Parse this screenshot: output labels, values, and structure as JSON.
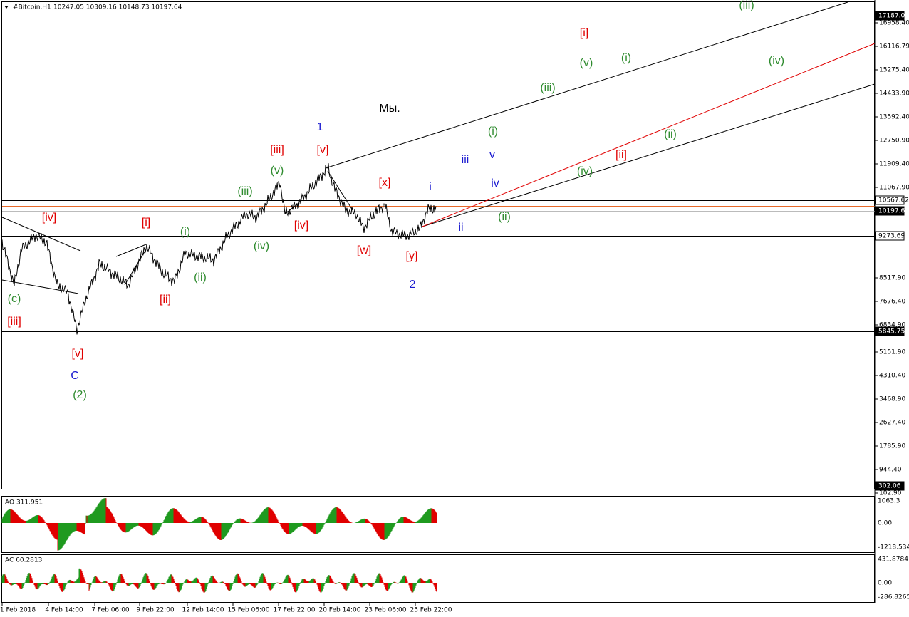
{
  "header": {
    "symbol": "#Bitcoin,H1",
    "quote": "10247.05 10309.16 10148.73 10197.64"
  },
  "price_axis": [
    "16958.40",
    "16116.79",
    "15275.40",
    "14433.90",
    "13592.40",
    "12750.90",
    "11909.40",
    "11067.90",
    "8517.90",
    "7676.40",
    "6834.90",
    "5151.90",
    "4310.40",
    "3468.90",
    "2627.40",
    "1785.90",
    "944.40",
    "102.90"
  ],
  "price_markers": [
    "17187.03",
    "10567.62",
    "10197.64",
    "9273.69",
    "5845.75",
    "302.06"
  ],
  "wave_labels": [
    {
      "text": "(iii)",
      "color": "#2e8b2e"
    },
    {
      "text": "[i]",
      "color": "#e00000"
    },
    {
      "text": "(v)",
      "color": "#2e8b2e"
    },
    {
      "text": "(i)",
      "color": "#2e8b2e"
    },
    {
      "text": "(iv)",
      "color": "#2e8b2e"
    },
    {
      "text": "(iii)",
      "color": "#2e8b2e"
    },
    {
      "text": "Мы.",
      "color": "#000000"
    },
    {
      "text": "1",
      "color": "#1a1ad0"
    },
    {
      "text": "[iii]",
      "color": "#e00000"
    },
    {
      "text": "[v]",
      "color": "#e00000"
    },
    {
      "text": "(i)",
      "color": "#2e8b2e"
    },
    {
      "text": "iii",
      "color": "#1a1ad0"
    },
    {
      "text": "v",
      "color": "#1a1ad0"
    },
    {
      "text": "(ii)",
      "color": "#2e8b2e"
    },
    {
      "text": "[ii]",
      "color": "#e00000"
    },
    {
      "text": "(v)",
      "color": "#2e8b2e"
    },
    {
      "text": "(iv)",
      "color": "#2e8b2e"
    },
    {
      "text": "[x]",
      "color": "#e00000"
    },
    {
      "text": "i",
      "color": "#1a1ad0"
    },
    {
      "text": "iv",
      "color": "#1a1ad0"
    },
    {
      "text": "(iii)",
      "color": "#2e8b2e"
    },
    {
      "text": "(ii)",
      "color": "#2e8b2e"
    },
    {
      "text": "[iv]",
      "color": "#e00000"
    },
    {
      "text": "[i]",
      "color": "#e00000"
    },
    {
      "text": "[iv]",
      "color": "#e00000"
    },
    {
      "text": "ii",
      "color": "#1a1ad0"
    },
    {
      "text": "(i)",
      "color": "#2e8b2e"
    },
    {
      "text": "(iv)",
      "color": "#2e8b2e"
    },
    {
      "text": "[w]",
      "color": "#e00000"
    },
    {
      "text": "[y]",
      "color": "#e00000"
    },
    {
      "text": "(ii)",
      "color": "#2e8b2e"
    },
    {
      "text": "2",
      "color": "#1a1ad0"
    },
    {
      "text": "(c)",
      "color": "#2e8b2e"
    },
    {
      "text": "[ii]",
      "color": "#e00000"
    },
    {
      "text": "[iii]",
      "color": "#e00000"
    },
    {
      "text": "[v]",
      "color": "#e00000"
    },
    {
      "text": "C",
      "color": "#1a1ad0"
    },
    {
      "text": "(2)",
      "color": "#2e8b2e"
    }
  ],
  "time_axis": [
    "1 Feb 2018",
    "4 Feb 14:00",
    "7 Feb 06:00",
    "9 Feb 22:00",
    "12 Feb 14:00",
    "15 Feb 06:00",
    "17 Feb 22:00",
    "20 Feb 14:00",
    "23 Feb 06:00",
    "25 Feb 22:00"
  ],
  "ao": {
    "title": "AO 311.951",
    "axis": [
      "1063.3",
      "0.00",
      "-1218.534"
    ]
  },
  "ac": {
    "title": "AC 60.2813",
    "axis": [
      "431.8784",
      "0.00",
      "-286.8265"
    ]
  }
}
